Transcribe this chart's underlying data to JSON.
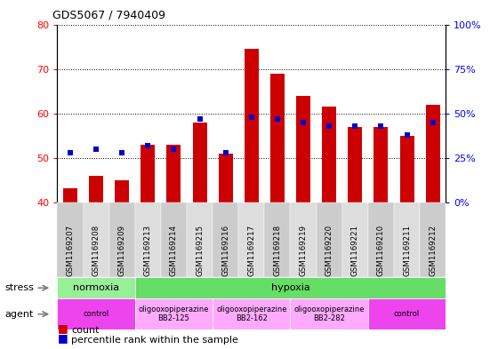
{
  "title": "GDS5067 / 7940409",
  "samples": [
    "GSM1169207",
    "GSM1169208",
    "GSM1169209",
    "GSM1169213",
    "GSM1169214",
    "GSM1169215",
    "GSM1169216",
    "GSM1169217",
    "GSM1169218",
    "GSM1169219",
    "GSM1169220",
    "GSM1169221",
    "GSM1169210",
    "GSM1169211",
    "GSM1169212"
  ],
  "counts": [
    43.2,
    46.0,
    45.0,
    53.0,
    53.0,
    58.0,
    51.0,
    74.5,
    69.0,
    64.0,
    61.5,
    57.0,
    57.0,
    55.0,
    62.0
  ],
  "percentiles": [
    28,
    30,
    28,
    32,
    30,
    47,
    28,
    48,
    47,
    45,
    43,
    43,
    43,
    38,
    45
  ],
  "ylim_left": [
    40,
    80
  ],
  "ylim_right": [
    0,
    100
  ],
  "yticks_left": [
    40,
    50,
    60,
    70,
    80
  ],
  "yticks_right": [
    0,
    25,
    50,
    75,
    100
  ],
  "bar_color": "#cc0000",
  "dot_color": "#0000cc",
  "bar_bottom": 40,
  "stress_labels": [
    {
      "text": "normoxia",
      "start": 0,
      "end": 3,
      "color": "#99ee99"
    },
    {
      "text": "hypoxia",
      "start": 3,
      "end": 15,
      "color": "#66dd66"
    }
  ],
  "agent_labels": [
    {
      "text": "control",
      "start": 0,
      "end": 3,
      "color": "#ee44ee"
    },
    {
      "text": "oligooxopiperazine\nBB2-125",
      "start": 3,
      "end": 6,
      "color": "#ffaaff"
    },
    {
      "text": "oligooxopiperazine\nBB2-162",
      "start": 6,
      "end": 9,
      "color": "#ffaaff"
    },
    {
      "text": "oligooxopiperazine\nBB2-282",
      "start": 9,
      "end": 12,
      "color": "#ffaaff"
    },
    {
      "text": "control",
      "start": 12,
      "end": 15,
      "color": "#ee44ee"
    }
  ],
  "bg_color": "#ffffff",
  "label_area_color": "#cccccc",
  "label_alt_color": "#dddddd"
}
